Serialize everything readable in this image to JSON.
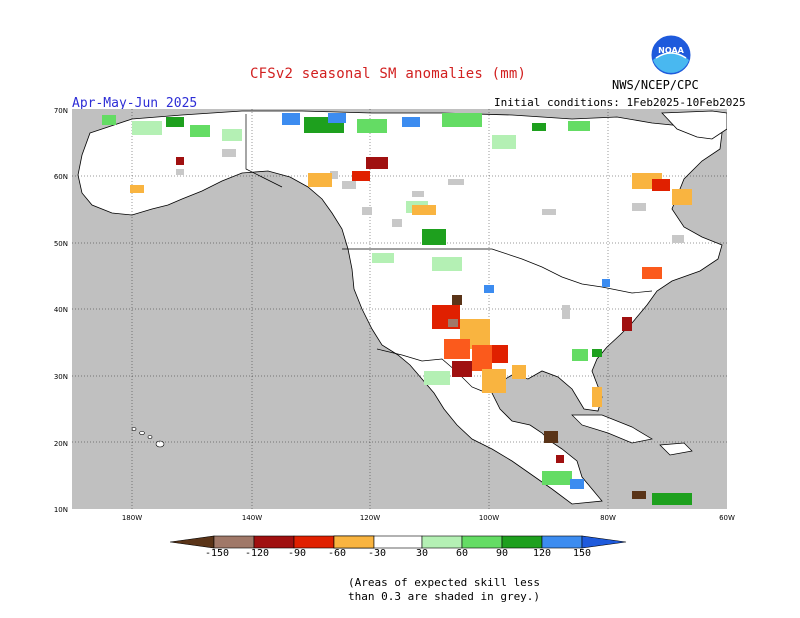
{
  "header": {
    "title": "CFSv2 seasonal SM anomalies (mm)",
    "org": "NWS/NCEP/CPC",
    "season": "Apr-May-Jun 2025",
    "init_conditions": "Initial conditions: 1Feb2025-10Feb2025",
    "logo_text": "NOAA"
  },
  "map": {
    "lat_labels": [
      "70N",
      "60N",
      "50N",
      "40N",
      "30N",
      "20N",
      "10N"
    ],
    "lon_labels": [
      "180W",
      "140W",
      "120W",
      "100W",
      "80W",
      "60W"
    ],
    "colors": {
      "ocean": "#c0c0c0",
      "land": "#ffffff",
      "low_skill": "#c8c8c8"
    }
  },
  "colorbar": {
    "ticks": [
      "-150",
      "-120",
      "-90",
      "-60",
      "-30",
      "30",
      "60",
      "90",
      "120",
      "150"
    ],
    "colors": [
      "#5a3418",
      "#a07868",
      "#a01010",
      "#e02000",
      "#fb5a1c",
      "#f9b440",
      "#ffffff",
      "#b4f0b4",
      "#64dc64",
      "#1ea01e",
      "#3c8cf0",
      "#1e5adc"
    ]
  },
  "note": {
    "line1": "(Areas of expected skill less",
    "line2": "than 0.3 are shaded in grey.)"
  }
}
